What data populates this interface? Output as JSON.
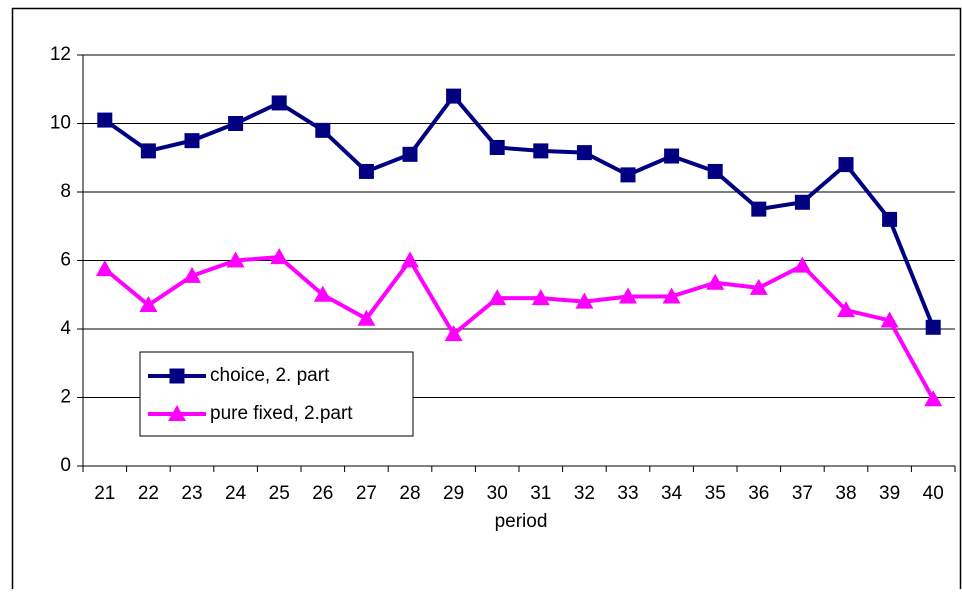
{
  "chart_data": {
    "type": "line",
    "x_label": "period",
    "categories": [
      "21",
      "22",
      "23",
      "24",
      "25",
      "26",
      "27",
      "28",
      "29",
      "30",
      "31",
      "32",
      "33",
      "34",
      "35",
      "36",
      "37",
      "38",
      "39",
      "40"
    ],
    "series": [
      {
        "name": "choice, 2. part",
        "color": "#000080",
        "marker": "square",
        "values": [
          10.1,
          9.2,
          9.5,
          10.0,
          10.6,
          9.8,
          8.6,
          9.1,
          10.8,
          9.3,
          9.2,
          9.15,
          8.5,
          9.05,
          8.6,
          7.5,
          7.7,
          8.8,
          7.2,
          4.05
        ]
      },
      {
        "name": "pure fixed, 2.part",
        "color": "#ff00ff",
        "marker": "triangle",
        "values": [
          5.75,
          4.7,
          5.55,
          6.0,
          6.1,
          5.0,
          4.3,
          6.0,
          3.85,
          4.9,
          4.9,
          4.8,
          4.95,
          4.95,
          5.35,
          5.2,
          5.85,
          4.55,
          4.25,
          1.95
        ]
      }
    ],
    "ylim": [
      0,
      12
    ],
    "yticks": [
      0,
      2,
      4,
      6,
      8,
      10,
      12
    ],
    "grid": true,
    "legend": "lower-left"
  }
}
